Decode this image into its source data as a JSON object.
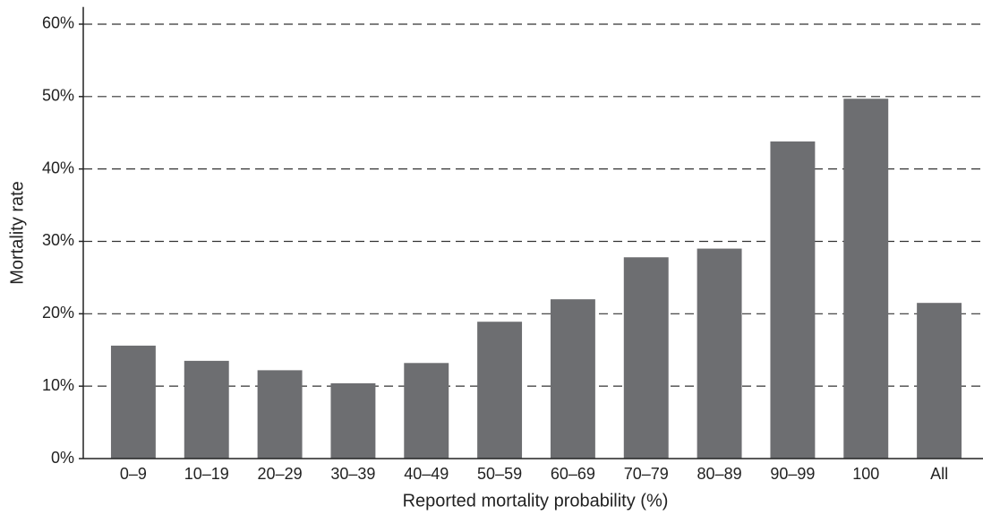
{
  "chart_data": {
    "type": "bar",
    "xlabel": "Reported mortality probability (%)",
    "ylabel": "Mortality rate",
    "categories": [
      "0–9",
      "10–19",
      "20–29",
      "30–39",
      "40–49",
      "50–59",
      "60–69",
      "70–79",
      "80–89",
      "90–99",
      "100",
      "All"
    ],
    "values": [
      15.6,
      13.5,
      12.2,
      10.4,
      13.2,
      18.9,
      22.0,
      27.8,
      29.0,
      43.8,
      49.7,
      21.5
    ],
    "color": "#6d6e71",
    "ylim": [
      0,
      62
    ],
    "yticks": [
      {
        "value": 0,
        "label": "0%"
      },
      {
        "value": 10,
        "label": "10%"
      },
      {
        "value": 20,
        "label": "20%"
      },
      {
        "value": 30,
        "label": "30%"
      },
      {
        "value": 40,
        "label": "40%"
      },
      {
        "value": 50,
        "label": "50%"
      },
      {
        "value": 60,
        "label": "60%"
      }
    ],
    "grid": true
  }
}
